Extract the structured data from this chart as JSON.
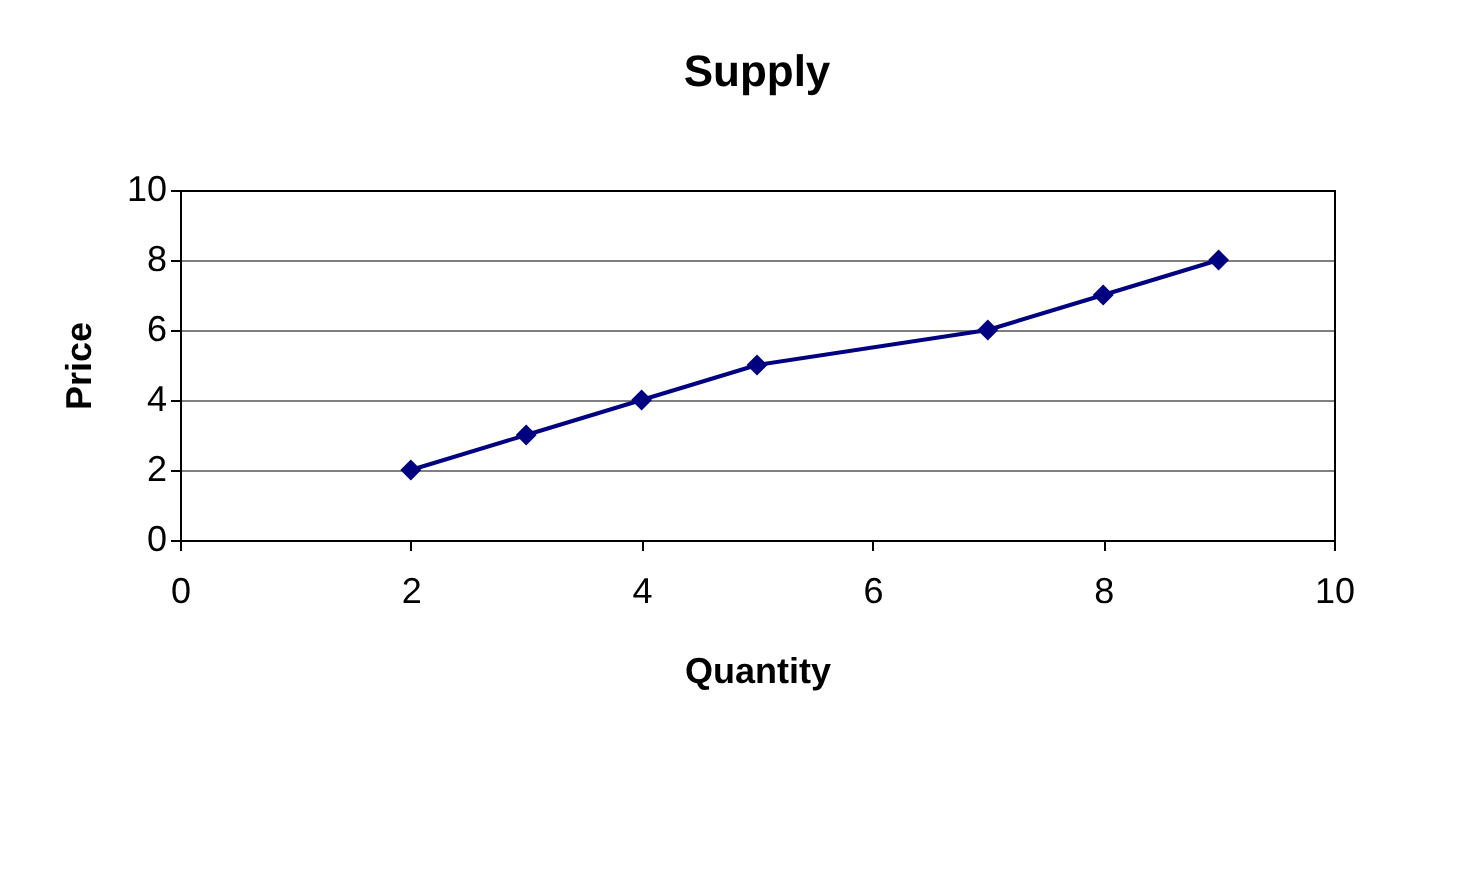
{
  "chart_data": {
    "type": "line",
    "title": "Supply",
    "xlabel": "Quantity",
    "ylabel": "Price",
    "x": [
      2,
      3,
      4,
      5,
      7,
      8,
      9
    ],
    "series": [
      {
        "color": "#000080",
        "values": [
          2,
          3,
          4,
          5,
          6,
          7,
          8
        ]
      }
    ],
    "xlim": [
      0,
      10
    ],
    "xticks": [
      0,
      2,
      4,
      6,
      8,
      10
    ],
    "ylim": [
      0,
      10
    ],
    "yticks": [
      0,
      2,
      4,
      6,
      8,
      10
    ],
    "grid": "y",
    "marker": "diamond",
    "line_style": "solid",
    "legend": false
  }
}
